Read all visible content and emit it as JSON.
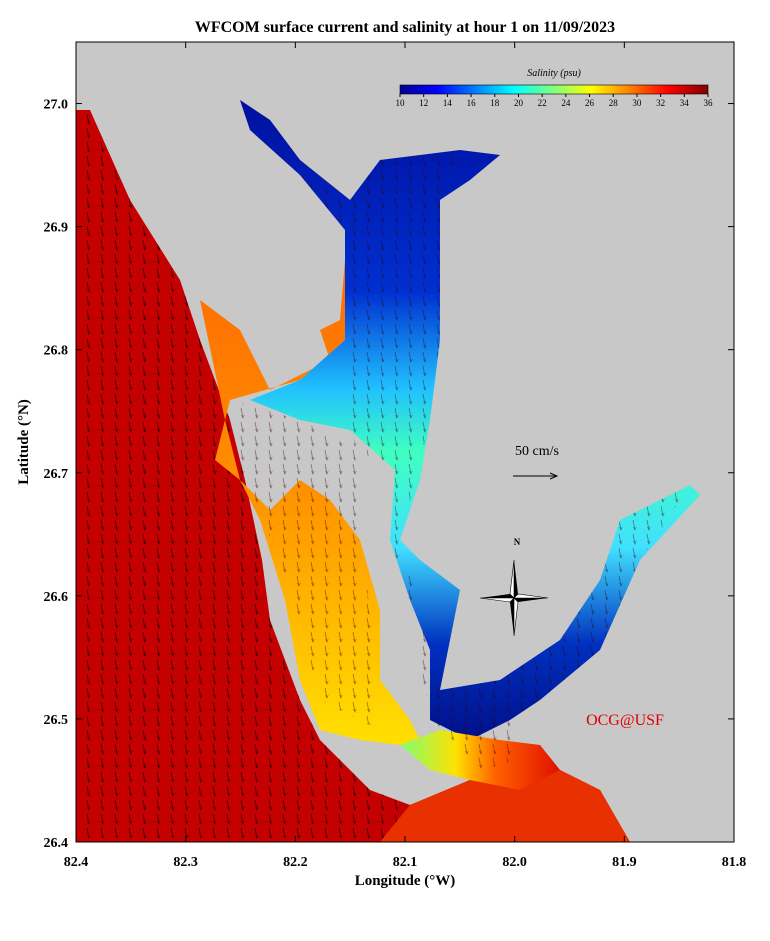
{
  "map": {
    "title": "WFCOM surface current and salinity at hour 1 on 11/09/2023",
    "x_label": "Longitude (°W)",
    "y_label": "Latitude (°N)",
    "xlim": [
      82.4,
      81.8
    ],
    "xticks": [
      82.4,
      82.3,
      82.2,
      82.1,
      {
        "value": 82,
        "label": "82.0"
      },
      81.9,
      81.8
    ],
    "ylim": [
      26.4,
      27.05
    ],
    "yticks": [
      26.4,
      26.5,
      26.6,
      26.7,
      26.8,
      26.9,
      {
        "value": 27,
        "label": "27.0"
      }
    ],
    "colorbar": {
      "title": "Salinity (psu)",
      "lim": [
        10,
        36
      ],
      "ticks": [
        10,
        12,
        14,
        16,
        18,
        20,
        22,
        24,
        26,
        28,
        30,
        32,
        34,
        36
      ]
    },
    "scale_arrow_label": "50 cm/s",
    "compass_label": "N",
    "credit": "OCG@USF"
  }
}
